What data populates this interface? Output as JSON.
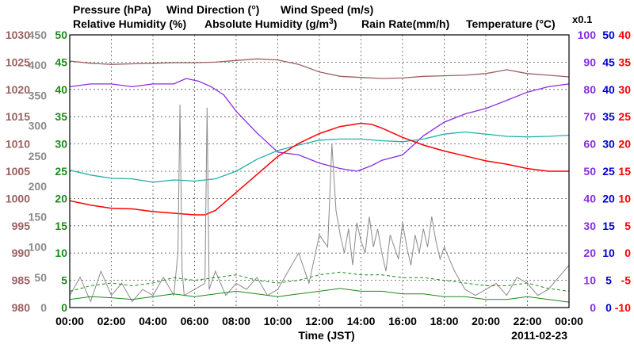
{
  "chart_data": {
    "type": "line",
    "date_label": "2011-02-23",
    "xlabel": "Time (JST)",
    "x_ticks": [
      "00:00",
      "02:00",
      "04:00",
      "06:00",
      "08:00",
      "10:00",
      "12:00",
      "14:00",
      "16:00",
      "18:00",
      "20:00",
      "22:00",
      "00:00"
    ],
    "x_range_hours": [
      0,
      24
    ],
    "legend": {
      "pressure": "Pressure (hPa)",
      "wind_direction": "Wind Direction (°)",
      "wind_speed": "Wind Speed (m/s)",
      "relative_humidity": "Relative Humidity (%)",
      "absolute_humidity_prefix": "Absolute Humidity (g/m",
      "absolute_humidity_sup": "3",
      "absolute_humidity_suffix": ")",
      "rain_rate": "Rain Rate(mm/h)",
      "temperature": "Temperature (°C)",
      "rain_scale": "x0.1"
    },
    "colors": {
      "pressure": "#9a6060",
      "wind_direction": "#8a8a8a",
      "wind_speed": "#1a8a1a",
      "relative_humidity": "#8a2be2",
      "absolute_humidity": "#20b2aa",
      "rain_rate": "#0000cd",
      "temperature": "#ff0000"
    },
    "axes": {
      "pressure": {
        "range": [
          980,
          1030
        ],
        "ticks": [
          "1030",
          "1025",
          "1020",
          "1015",
          "1010",
          "1005",
          "1000",
          "995",
          "990",
          "985",
          "980"
        ]
      },
      "wind_direction": {
        "range": [
          0,
          450
        ],
        "ticks": [
          "450",
          "400",
          "350",
          "300",
          "250",
          "200",
          "150",
          "100",
          "50",
          "0"
        ]
      },
      "wind_speed": {
        "range": [
          0,
          50
        ],
        "ticks": [
          "50",
          "45",
          "40",
          "35",
          "30",
          "25",
          "20",
          "15",
          "10",
          "5",
          "0"
        ]
      },
      "relative_humidity": {
        "range": [
          0,
          100
        ],
        "ticks": [
          "100",
          "90",
          "80",
          "70",
          "60",
          "50",
          "40",
          "30",
          "20",
          "10",
          "0"
        ]
      },
      "rain_rate": {
        "range": [
          0,
          50
        ],
        "ticks": [
          "50",
          "45",
          "40",
          "35",
          "30",
          "25",
          "20",
          "15",
          "10",
          "5",
          "0"
        ]
      },
      "temperature": {
        "range": [
          -10,
          40
        ],
        "ticks": [
          "40",
          "35",
          "30",
          "25",
          "20",
          "15",
          "10",
          "5",
          "0",
          "-5",
          "-10"
        ]
      }
    },
    "series": [
      {
        "name": "Pressure",
        "axis": "pressure",
        "x": [
          0,
          1,
          2,
          3,
          4,
          5,
          6,
          7,
          8,
          9,
          10,
          11,
          12,
          13,
          14,
          15,
          16,
          17,
          18,
          19,
          20,
          21,
          22,
          23,
          24
        ],
        "values": [
          1025.2,
          1024.8,
          1024.6,
          1024.7,
          1024.8,
          1024.9,
          1024.9,
          1025.0,
          1025.3,
          1025.6,
          1025.4,
          1024.6,
          1023.2,
          1022.4,
          1022.2,
          1022.0,
          1022.1,
          1022.4,
          1022.5,
          1022.6,
          1022.9,
          1023.6,
          1022.9,
          1022.6,
          1022.3
        ]
      },
      {
        "name": "Relative Humidity",
        "axis": "relative_humidity",
        "x": [
          0,
          1,
          2,
          3,
          4,
          5,
          5.6,
          6.2,
          6.8,
          7.4,
          8,
          9,
          10,
          11,
          12,
          13,
          13.8,
          14.5,
          15,
          16,
          17,
          18,
          19,
          20,
          21,
          22,
          23,
          24
        ],
        "values": [
          81,
          82,
          82,
          81,
          82,
          82,
          84,
          83,
          81,
          78,
          72,
          64,
          57,
          56,
          53,
          51,
          50,
          52,
          54,
          56,
          63,
          68,
          71,
          73,
          76,
          79,
          81,
          82
        ]
      },
      {
        "name": "Absolute Humidity",
        "axis": "wind_speed",
        "x": [
          0,
          1,
          2,
          3,
          4,
          5,
          6,
          7,
          8,
          9,
          10,
          11,
          12,
          13,
          14,
          15,
          16,
          17,
          18,
          19,
          20,
          21,
          22,
          23,
          24
        ],
        "values": [
          25.2,
          24.3,
          23.7,
          23.6,
          23.0,
          23.4,
          23.2,
          23.6,
          25.0,
          27.2,
          28.8,
          29.8,
          30.7,
          30.9,
          30.9,
          30.6,
          30.4,
          30.9,
          31.8,
          32.2,
          31.8,
          31.4,
          31.3,
          31.4,
          31.6
        ]
      },
      {
        "name": "Temperature",
        "axis": "temperature",
        "x": [
          0,
          1,
          2,
          3,
          4,
          5,
          6,
          6.5,
          7,
          8,
          9,
          10,
          11,
          12,
          13,
          14,
          14.5,
          15,
          16,
          17,
          18,
          19,
          20,
          21,
          22,
          23,
          24
        ],
        "values": [
          9.6,
          8.8,
          8.2,
          8.1,
          7.6,
          7.3,
          7.0,
          7.0,
          7.8,
          11.1,
          14.4,
          17.7,
          20.1,
          21.9,
          23.2,
          23.8,
          23.6,
          22.9,
          21.2,
          19.8,
          18.7,
          17.8,
          16.9,
          16.3,
          15.5,
          15.0,
          15.0
        ]
      },
      {
        "name": "Wind Direction",
        "axis": "wind_direction",
        "x": [
          0,
          0.5,
          1,
          1.5,
          2,
          2.5,
          3,
          3.5,
          4,
          4.5,
          5,
          5.2,
          5.3,
          5.4,
          5.5,
          6,
          6.5,
          6.6,
          6.7,
          6.8,
          7,
          7.5,
          8,
          8.5,
          9,
          9.5,
          10,
          10.5,
          11,
          11.5,
          12,
          12.4,
          12.6,
          12.8,
          13,
          13.2,
          13.4,
          13.6,
          13.8,
          14,
          14.2,
          14.4,
          14.6,
          14.8,
          15,
          15.2,
          15.4,
          15.6,
          15.8,
          16,
          16.2,
          16.4,
          16.6,
          16.8,
          17,
          17.2,
          17.4,
          17.6,
          17.8,
          18,
          18.5,
          19,
          19.5,
          20,
          20.5,
          21,
          21.5,
          22,
          22.5,
          23,
          23.5,
          24
        ],
        "values": [
          20,
          50,
          10,
          60,
          20,
          40,
          10,
          30,
          20,
          50,
          20,
          90,
          335,
          60,
          20,
          30,
          40,
          330,
          30,
          40,
          60,
          20,
          40,
          30,
          50,
          20,
          30,
          60,
          90,
          40,
          120,
          100,
          270,
          160,
          120,
          90,
          130,
          70,
          140,
          110,
          90,
          150,
          100,
          130,
          90,
          60,
          120,
          100,
          80,
          140,
          100,
          70,
          120,
          90,
          130,
          100,
          150,
          110,
          80,
          100,
          60,
          30,
          20,
          30,
          40,
          20,
          50,
          40,
          20,
          30,
          50,
          70
        ]
      },
      {
        "name": "Wind Speed (avg)",
        "axis": "wind_speed",
        "x": [
          0,
          1,
          2,
          3,
          4,
          5,
          6,
          7,
          8,
          9,
          10,
          11,
          12,
          13,
          14,
          15,
          16,
          17,
          18,
          19,
          20,
          21,
          22,
          23,
          24
        ],
        "values": [
          1.5,
          2.0,
          1.8,
          1.5,
          2.0,
          2.5,
          2.0,
          2.5,
          3.0,
          2.5,
          2.0,
          2.5,
          3.0,
          3.5,
          3.0,
          3.0,
          2.5,
          2.5,
          2.0,
          2.0,
          1.5,
          1.5,
          2.0,
          1.5,
          1.0
        ]
      },
      {
        "name": "Wind Speed (gust)",
        "axis": "wind_speed",
        "x": [
          0,
          1,
          2,
          3,
          4,
          5,
          6,
          7,
          8,
          9,
          10,
          11,
          12,
          13,
          14,
          15,
          16,
          17,
          18,
          19,
          20,
          21,
          22,
          23,
          24
        ],
        "values": [
          3.0,
          4.0,
          4.5,
          4.0,
          4.5,
          5.5,
          5.0,
          5.5,
          6.0,
          5.0,
          4.5,
          5.0,
          6.0,
          6.5,
          6.0,
          6.0,
          5.5,
          5.5,
          5.0,
          4.5,
          4.0,
          4.0,
          4.5,
          3.5,
          3.0
        ]
      },
      {
        "name": "Rain Rate",
        "axis": "rain_rate",
        "x": [
          0,
          24
        ],
        "values": [
          0,
          0
        ]
      }
    ]
  }
}
